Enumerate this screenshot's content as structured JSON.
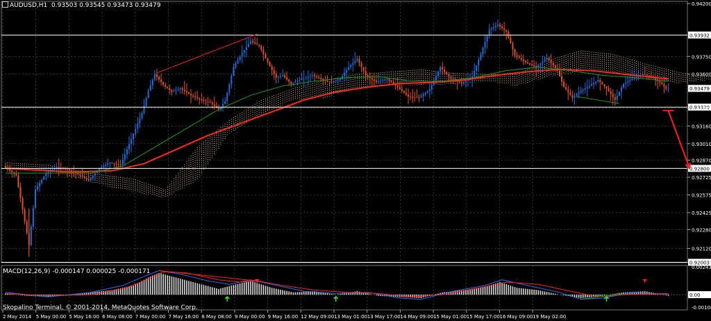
{
  "header": {
    "symbol_label": "AUDUSD,H1",
    "ohlc": "0.93503 0.93545 0.93473 0.93479"
  },
  "macd_panel": {
    "label": "MACD(12,26,9)",
    "values": "-0.000147 0.000025 -0.000171",
    "price_labels": [
      {
        "value": "0.002436",
        "price": 0.002436,
        "marker": false
      },
      {
        "value": "0.00",
        "price": 0.0,
        "marker": true
      },
      {
        "value": "-0.001089",
        "price": -0.001089,
        "marker": false
      }
    ]
  },
  "copyright": "Skopalino Terminal, © 2001-2014, MetaQuotes Software Corp.",
  "colors": {
    "background": "#000000",
    "grid": "#5a5a5a",
    "bull_candle": "#1e6fd9",
    "bear_candle": "#e0532a",
    "ma_slow": "#ff2a1a",
    "ma_fast": "#1f9a1f",
    "cloud_bull": "#f5e3c0",
    "cloud_bear": "#f0a070",
    "macd_hist": "#d9d9d9",
    "macd_line": "#2b6fe8",
    "signal_line": "#ff2020",
    "level_line": "#ffffff",
    "arrow": "#ff2020"
  },
  "chart_data": {
    "type": "candlestick",
    "symbol": "AUDUSD",
    "timeframe": "H1",
    "ylim": [
      0.92,
      0.942
    ],
    "y_ticks": [
      0.942,
      0.9375,
      0.936,
      0.9331,
      0.9316,
      0.9301,
      0.9287,
      0.92725,
      0.92575,
      0.92425,
      0.9228,
      0.9212
    ],
    "y_tick_labels": [
      "0.94200",
      "0.93750",
      "0.93600",
      "0.93310",
      "0.93160",
      "0.93010",
      "0.92870",
      "0.92725",
      "0.92575",
      "0.92425",
      "0.92280",
      "0.92120"
    ],
    "x_tick_labels": [
      "2 May 2014",
      "5 May 00:00",
      "5 May 16:00",
      "6 May 08:00",
      "7 May 00:00",
      "7 May 16:00",
      "8 May 08:00",
      "9 May 00:00",
      "9 May 16:00",
      "12 May 09:00",
      "13 May 01:00",
      "13 May 17:00",
      "14 May 09:00",
      "15 May 01:00",
      "15 May 17:00",
      "16 May 09:00",
      "19 May 02:00"
    ],
    "horizontal_levels": [
      {
        "value": 0.93932,
        "label": "0.93932"
      },
      {
        "value": 0.9332,
        "label": "0.93320"
      },
      {
        "value": 0.928,
        "label": "0.92800"
      },
      {
        "value": 0.92003,
        "label": "0.92003"
      }
    ],
    "current_price": {
      "value": 0.93479,
      "label": "0.93479"
    },
    "price_path": [
      [
        0,
        0.9282
      ],
      [
        6,
        0.9274
      ],
      [
        9,
        0.9245
      ],
      [
        12,
        0.9215
      ],
      [
        15,
        0.9262
      ],
      [
        20,
        0.9276
      ],
      [
        25,
        0.9281
      ],
      [
        30,
        0.9279
      ],
      [
        35,
        0.9275
      ],
      [
        40,
        0.927
      ],
      [
        45,
        0.928
      ],
      [
        50,
        0.9285
      ],
      [
        55,
        0.9283
      ],
      [
        60,
        0.9305
      ],
      [
        65,
        0.9327
      ],
      [
        68,
        0.9346
      ],
      [
        71,
        0.936
      ],
      [
        75,
        0.9351
      ],
      [
        79,
        0.9345
      ],
      [
        83,
        0.9348
      ],
      [
        88,
        0.9342
      ],
      [
        93,
        0.9338
      ],
      [
        97,
        0.9336
      ],
      [
        101,
        0.933
      ],
      [
        104,
        0.9337
      ],
      [
        108,
        0.9366
      ],
      [
        112,
        0.9378
      ],
      [
        116,
        0.9388
      ],
      [
        120,
        0.9384
      ],
      [
        124,
        0.937
      ],
      [
        128,
        0.9357
      ],
      [
        131,
        0.9359
      ],
      [
        135,
        0.9352
      ],
      [
        140,
        0.9356
      ],
      [
        145,
        0.9359
      ],
      [
        150,
        0.9355
      ],
      [
        154,
        0.9353
      ],
      [
        158,
        0.9356
      ],
      [
        162,
        0.9366
      ],
      [
        166,
        0.9373
      ],
      [
        170,
        0.9359
      ],
      [
        175,
        0.9353
      ],
      [
        180,
        0.9356
      ],
      [
        185,
        0.9349
      ],
      [
        190,
        0.9341
      ],
      [
        195,
        0.934
      ],
      [
        200,
        0.9347
      ],
      [
        205,
        0.9366
      ],
      [
        210,
        0.9356
      ],
      [
        215,
        0.9352
      ],
      [
        220,
        0.9358
      ],
      [
        224,
        0.9377
      ],
      [
        228,
        0.9398
      ],
      [
        232,
        0.9402
      ],
      [
        236,
        0.9396
      ],
      [
        240,
        0.9376
      ],
      [
        245,
        0.937
      ],
      [
        250,
        0.9366
      ],
      [
        255,
        0.9374
      ],
      [
        260,
        0.9363
      ],
      [
        263,
        0.9349
      ],
      [
        267,
        0.934
      ],
      [
        271,
        0.9346
      ],
      [
        275,
        0.935
      ],
      [
        279,
        0.9355
      ],
      [
        283,
        0.9348
      ],
      [
        287,
        0.9338
      ],
      [
        291,
        0.9352
      ],
      [
        295,
        0.9356
      ],
      [
        300,
        0.936
      ],
      [
        304,
        0.9358
      ],
      [
        308,
        0.9353
      ],
      [
        311,
        0.93479
      ]
    ],
    "series": [
      {
        "name": "",
        "style": "ma_slow",
        "points": [
          [
            0,
            0.928
          ],
          [
            30,
            0.9277
          ],
          [
            50,
            0.9278
          ],
          [
            65,
            0.9284
          ],
          [
            80,
            0.9296
          ],
          [
            95,
            0.9308
          ],
          [
            110,
            0.9318
          ],
          [
            125,
            0.9328
          ],
          [
            140,
            0.9338
          ],
          [
            155,
            0.9345
          ],
          [
            170,
            0.9349
          ],
          [
            185,
            0.9352
          ],
          [
            200,
            0.9353
          ],
          [
            215,
            0.9355
          ],
          [
            230,
            0.9359
          ],
          [
            245,
            0.9362
          ],
          [
            260,
            0.9364
          ],
          [
            275,
            0.9363
          ],
          [
            290,
            0.936
          ],
          [
            311,
            0.9356
          ]
        ]
      },
      {
        "name": "",
        "style": "ma_fast",
        "points": [
          [
            0,
            0.9276
          ],
          [
            20,
            0.9276
          ],
          [
            40,
            0.9276
          ],
          [
            55,
            0.9282
          ],
          [
            70,
            0.9298
          ],
          [
            85,
            0.9314
          ],
          [
            100,
            0.933
          ],
          [
            115,
            0.9342
          ],
          [
            130,
            0.935
          ],
          [
            145,
            0.9354
          ],
          [
            160,
            0.9357
          ],
          [
            175,
            0.9358
          ],
          [
            190,
            0.9354
          ],
          [
            205,
            0.9354
          ],
          [
            220,
            0.9357
          ],
          [
            235,
            0.9363
          ],
          [
            250,
            0.9366
          ],
          [
            265,
            0.9363
          ],
          [
            280,
            0.9359
          ],
          [
            295,
            0.9357
          ],
          [
            311,
            0.9354
          ]
        ]
      }
    ],
    "cloud": {
      "span_a": [
        [
          0,
          0.9285
        ],
        [
          20,
          0.9283
        ],
        [
          40,
          0.9276
        ],
        [
          60,
          0.9271
        ],
        [
          75,
          0.9262
        ],
        [
          90,
          0.9298
        ],
        [
          105,
          0.9321
        ],
        [
          120,
          0.9338
        ],
        [
          135,
          0.9348
        ],
        [
          150,
          0.9355
        ],
        [
          165,
          0.936
        ],
        [
          180,
          0.9362
        ],
        [
          195,
          0.9364
        ],
        [
          210,
          0.9361
        ],
        [
          225,
          0.936
        ],
        [
          240,
          0.936
        ],
        [
          255,
          0.9372
        ],
        [
          270,
          0.938
        ],
        [
          285,
          0.9377
        ],
        [
          300,
          0.9369
        ],
        [
          315,
          0.9362
        ],
        [
          330,
          0.9358
        ],
        [
          345,
          0.9357
        ]
      ],
      "span_b": [
        [
          0,
          0.928
        ],
        [
          20,
          0.9279
        ],
        [
          40,
          0.9268
        ],
        [
          60,
          0.926
        ],
        [
          75,
          0.9255
        ],
        [
          90,
          0.927
        ],
        [
          105,
          0.931
        ],
        [
          120,
          0.9325
        ],
        [
          135,
          0.9338
        ],
        [
          150,
          0.934
        ],
        [
          165,
          0.9348
        ],
        [
          180,
          0.935
        ],
        [
          195,
          0.9351
        ],
        [
          210,
          0.9351
        ],
        [
          225,
          0.9354
        ],
        [
          240,
          0.935
        ],
        [
          255,
          0.9358
        ],
        [
          270,
          0.9362
        ],
        [
          285,
          0.9362
        ],
        [
          300,
          0.9357
        ],
        [
          315,
          0.9352
        ],
        [
          330,
          0.9355
        ],
        [
          345,
          0.9356
        ]
      ]
    },
    "annotations": [
      {
        "type": "divergence-line",
        "color": "red",
        "from": [
          71,
          0.9361
        ],
        "to": [
          118,
          0.9394
        ]
      },
      {
        "type": "divergence-line",
        "color": "green",
        "from": [
          268,
          0.9341
        ],
        "to": [
          288,
          0.9335
        ]
      },
      {
        "type": "target-arrow",
        "color": "red",
        "from": [
          311,
          0.9329
        ],
        "to": [
          321,
          0.928
        ]
      }
    ],
    "macd": {
      "ylim": [
        -0.001089,
        0.002436
      ],
      "histogram": [
        [
          0,
          0.0001
        ],
        [
          10,
          -0.0001
        ],
        [
          20,
          -0.0002
        ],
        [
          30,
          0.0
        ],
        [
          40,
          0.0002
        ],
        [
          50,
          0.0004
        ],
        [
          60,
          0.0008
        ],
        [
          68,
          0.0016
        ],
        [
          72,
          0.0019
        ],
        [
          80,
          0.0015
        ],
        [
          90,
          0.001
        ],
        [
          100,
          0.0005
        ],
        [
          108,
          0.0009
        ],
        [
          115,
          0.0012
        ],
        [
          125,
          0.0006
        ],
        [
          135,
          0.0002
        ],
        [
          145,
          0.0003
        ],
        [
          155,
          0.0
        ],
        [
          165,
          0.0003
        ],
        [
          175,
          -0.0001
        ],
        [
          185,
          -0.0002
        ],
        [
          195,
          -0.0003
        ],
        [
          205,
          0.0002
        ],
        [
          215,
          0.0004
        ],
        [
          225,
          0.0007
        ],
        [
          232,
          0.0011
        ],
        [
          240,
          0.0006
        ],
        [
          250,
          0.0004
        ],
        [
          260,
          0.0
        ],
        [
          270,
          -0.0003
        ],
        [
          280,
          -0.0001
        ],
        [
          290,
          0.0002
        ],
        [
          300,
          0.0003
        ],
        [
          311,
          -0.0001
        ]
      ],
      "macd_line": [
        [
          0,
          0.0002
        ],
        [
          20,
          -0.0002
        ],
        [
          40,
          0.0002
        ],
        [
          55,
          0.0008
        ],
        [
          65,
          0.0016
        ],
        [
          72,
          0.0021
        ],
        [
          82,
          0.0018
        ],
        [
          95,
          0.0012
        ],
        [
          105,
          0.0009
        ],
        [
          115,
          0.0013
        ],
        [
          125,
          0.0009
        ],
        [
          140,
          0.0003
        ],
        [
          155,
          0.0001
        ],
        [
          170,
          0.0002
        ],
        [
          185,
          -0.0003
        ],
        [
          195,
          -0.0004
        ],
        [
          210,
          0.0003
        ],
        [
          225,
          0.0008
        ],
        [
          233,
          0.0013
        ],
        [
          245,
          0.0008
        ],
        [
          260,
          0.0002
        ],
        [
          270,
          -0.0004
        ],
        [
          280,
          -0.0003
        ],
        [
          295,
          0.0002
        ],
        [
          311,
          0.0
        ]
      ],
      "signal_line": [
        [
          0,
          0.0001
        ],
        [
          20,
          -0.0001
        ],
        [
          40,
          0.0
        ],
        [
          55,
          0.0005
        ],
        [
          65,
          0.0012
        ],
        [
          74,
          0.002
        ],
        [
          85,
          0.0019
        ],
        [
          100,
          0.0013
        ],
        [
          110,
          0.0011
        ],
        [
          118,
          0.0012
        ],
        [
          130,
          0.0008
        ],
        [
          145,
          0.0004
        ],
        [
          160,
          0.0002
        ],
        [
          175,
          0.0001
        ],
        [
          190,
          -0.0002
        ],
        [
          205,
          0.0
        ],
        [
          220,
          0.0005
        ],
        [
          235,
          0.0011
        ],
        [
          250,
          0.0009
        ],
        [
          265,
          0.0003
        ],
        [
          278,
          -0.0002
        ],
        [
          290,
          0.0
        ],
        [
          311,
          0.0001
        ]
      ],
      "divergence_lines": [
        {
          "color": "red",
          "from": [
            72,
            0.0021
          ],
          "to": [
            118,
            0.0012
          ]
        },
        {
          "color": "green",
          "from": [
            270,
            -0.0004
          ],
          "to": [
            290,
            0.0001
          ]
        }
      ],
      "up_arrows_at": [
        104,
        155,
        282
      ],
      "down_markers_at": [
        118,
        300
      ]
    }
  }
}
